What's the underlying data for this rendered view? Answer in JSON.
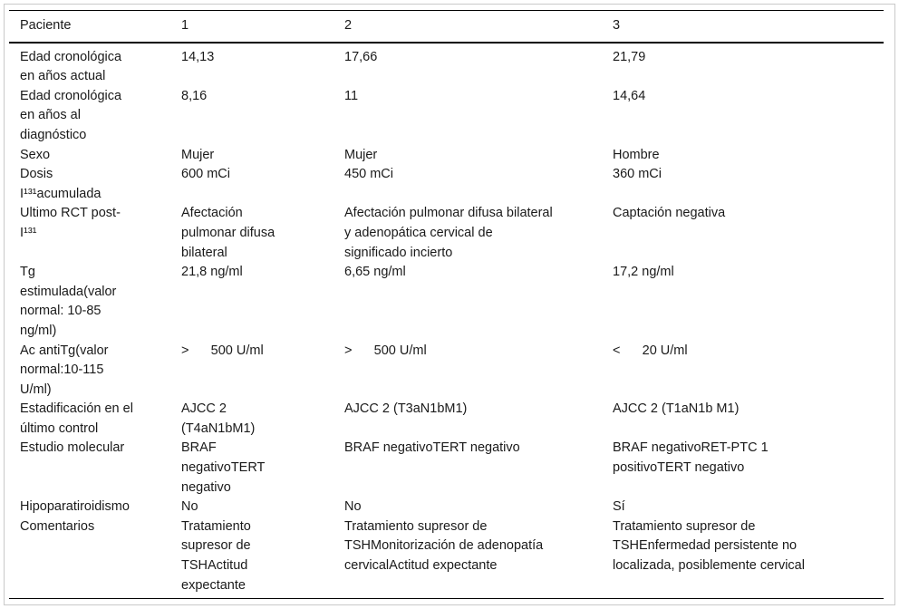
{
  "colors": {
    "text": "#1a1a1a",
    "rule": "#000000",
    "frame_border": "#c9c9c9",
    "background": "#ffffff"
  },
  "table": {
    "header": {
      "label": "Paciente",
      "cols": [
        "1",
        "2",
        "3"
      ]
    },
    "rows": [
      {
        "label": "Edad cronológica\nen años actual",
        "values": [
          "14,13",
          "17,66",
          "21,79"
        ]
      },
      {
        "label": "Edad cronológica\nen años al\ndiagnóstico",
        "values": [
          "8,16",
          "11",
          "14,64"
        ]
      },
      {
        "label": "Sexo",
        "values": [
          "Mujer",
          "Mujer",
          "Hombre"
        ]
      },
      {
        "label": "Dosis\nI¹³¹acumulada",
        "values": [
          "600 mCi",
          "450 mCi",
          "360 mCi"
        ]
      },
      {
        "label": "Ultimo RCT post-\nI¹³¹",
        "values": [
          "Afectación\npulmonar difusa\nbilateral",
          "Afectación pulmonar difusa bilateral\ny adenopática cervical de\nsignificado incierto",
          "Captación negativa"
        ]
      },
      {
        "label": "Tg\nestimulada(valor\nnormal: 10-85\nng/ml)",
        "values": [
          "21,8 ng/ml",
          "6,65 ng/ml",
          "17,2 ng/ml"
        ]
      },
      {
        "label": "Ac antiTg(valor\nnormal:10-115\nU/ml)",
        "values": [
          ">      500 U/ml",
          ">      500 U/ml",
          "<      20 U/ml"
        ]
      },
      {
        "label": "Estadificación en el\núltimo control",
        "values": [
          "AJCC 2\n(T4aN1bM1)",
          "AJCC 2 (T3aN1bM1)",
          "AJCC 2 (T1aN1b M1)"
        ]
      },
      {
        "label": "Estudio molecular",
        "values": [
          "BRAF\nnegativoTERT\nnegativo",
          "BRAF negativoTERT negativo",
          "BRAF negativoRET-PTC 1\npositivoTERT negativo"
        ]
      },
      {
        "label": "Hipoparatiroidismo",
        "values": [
          "No",
          "No",
          "Sí"
        ]
      },
      {
        "label": "Comentarios",
        "values": [
          "Tratamiento\nsupresor de\nTSHActitud\nexpectante",
          "Tratamiento supresor de\nTSHMonitorización de adenopatía\ncervicalActitud expectante",
          "Tratamiento supresor de\nTSHEnfermedad persistente no\nlocalizada, posiblemente cervical"
        ]
      }
    ]
  }
}
